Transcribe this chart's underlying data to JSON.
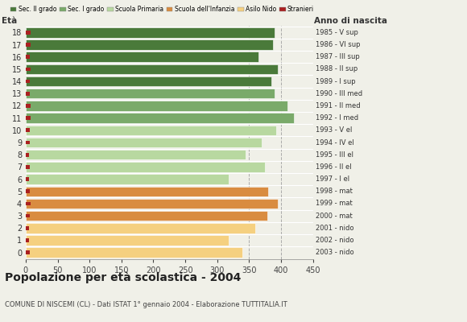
{
  "ages": [
    18,
    17,
    16,
    15,
    14,
    13,
    12,
    11,
    10,
    9,
    8,
    7,
    6,
    5,
    4,
    3,
    2,
    1,
    0
  ],
  "anno": [
    "1985 - V sup",
    "1986 - VI sup",
    "1987 - III sup",
    "1988 - II sup",
    "1989 - I sup",
    "1990 - III med",
    "1991 - II med",
    "1992 - I med",
    "1993 - V el",
    "1994 - IV el",
    "1995 - III el",
    "1996 - II el",
    "1997 - I el",
    "1998 - mat",
    "1999 - mat",
    "2000 - mat",
    "2001 - nido",
    "2002 - nido",
    "2003 - nido"
  ],
  "values": [
    390,
    388,
    365,
    395,
    385,
    390,
    410,
    420,
    392,
    370,
    345,
    375,
    318,
    380,
    395,
    378,
    360,
    318,
    340
  ],
  "stranieri": [
    8,
    8,
    6,
    8,
    7,
    7,
    8,
    8,
    6,
    6,
    5,
    6,
    5,
    7,
    8,
    7,
    5,
    5,
    6
  ],
  "bar_colors": {
    "sec2": "#4a7a3a",
    "sec1": "#7aaa6a",
    "primaria": "#b8d8a0",
    "infanzia": "#d98c40",
    "nido": "#f5d080",
    "stranieri": "#aa2020"
  },
  "age_categories": {
    "sec2": [
      18,
      17,
      16,
      15,
      14
    ],
    "sec1": [
      13,
      12,
      11
    ],
    "primaria": [
      10,
      9,
      8,
      7,
      6
    ],
    "infanzia": [
      5,
      4,
      3
    ],
    "nido": [
      2,
      1,
      0
    ]
  },
  "legend_labels": [
    "Sec. II grado",
    "Sec. I grado",
    "Scuola Primaria",
    "Scuola dell'Infanzia",
    "Asilo Nido",
    "Stranieri"
  ],
  "title": "Popolazione per età scolastica - 2004",
  "subtitle": "COMUNE DI NISCEMI (CL) - Dati ISTAT 1° gennaio 2004 - Elaborazione TUTTITALIA.IT",
  "xlabel_eta": "Età",
  "xlabel_anno": "Anno di nascita",
  "xlim": [
    0,
    450
  ],
  "xticks": [
    0,
    50,
    100,
    150,
    200,
    250,
    300,
    350,
    400,
    450
  ],
  "grid_lines": [
    350,
    400
  ],
  "background_color": "#f0f0e8",
  "bar_height": 0.82
}
